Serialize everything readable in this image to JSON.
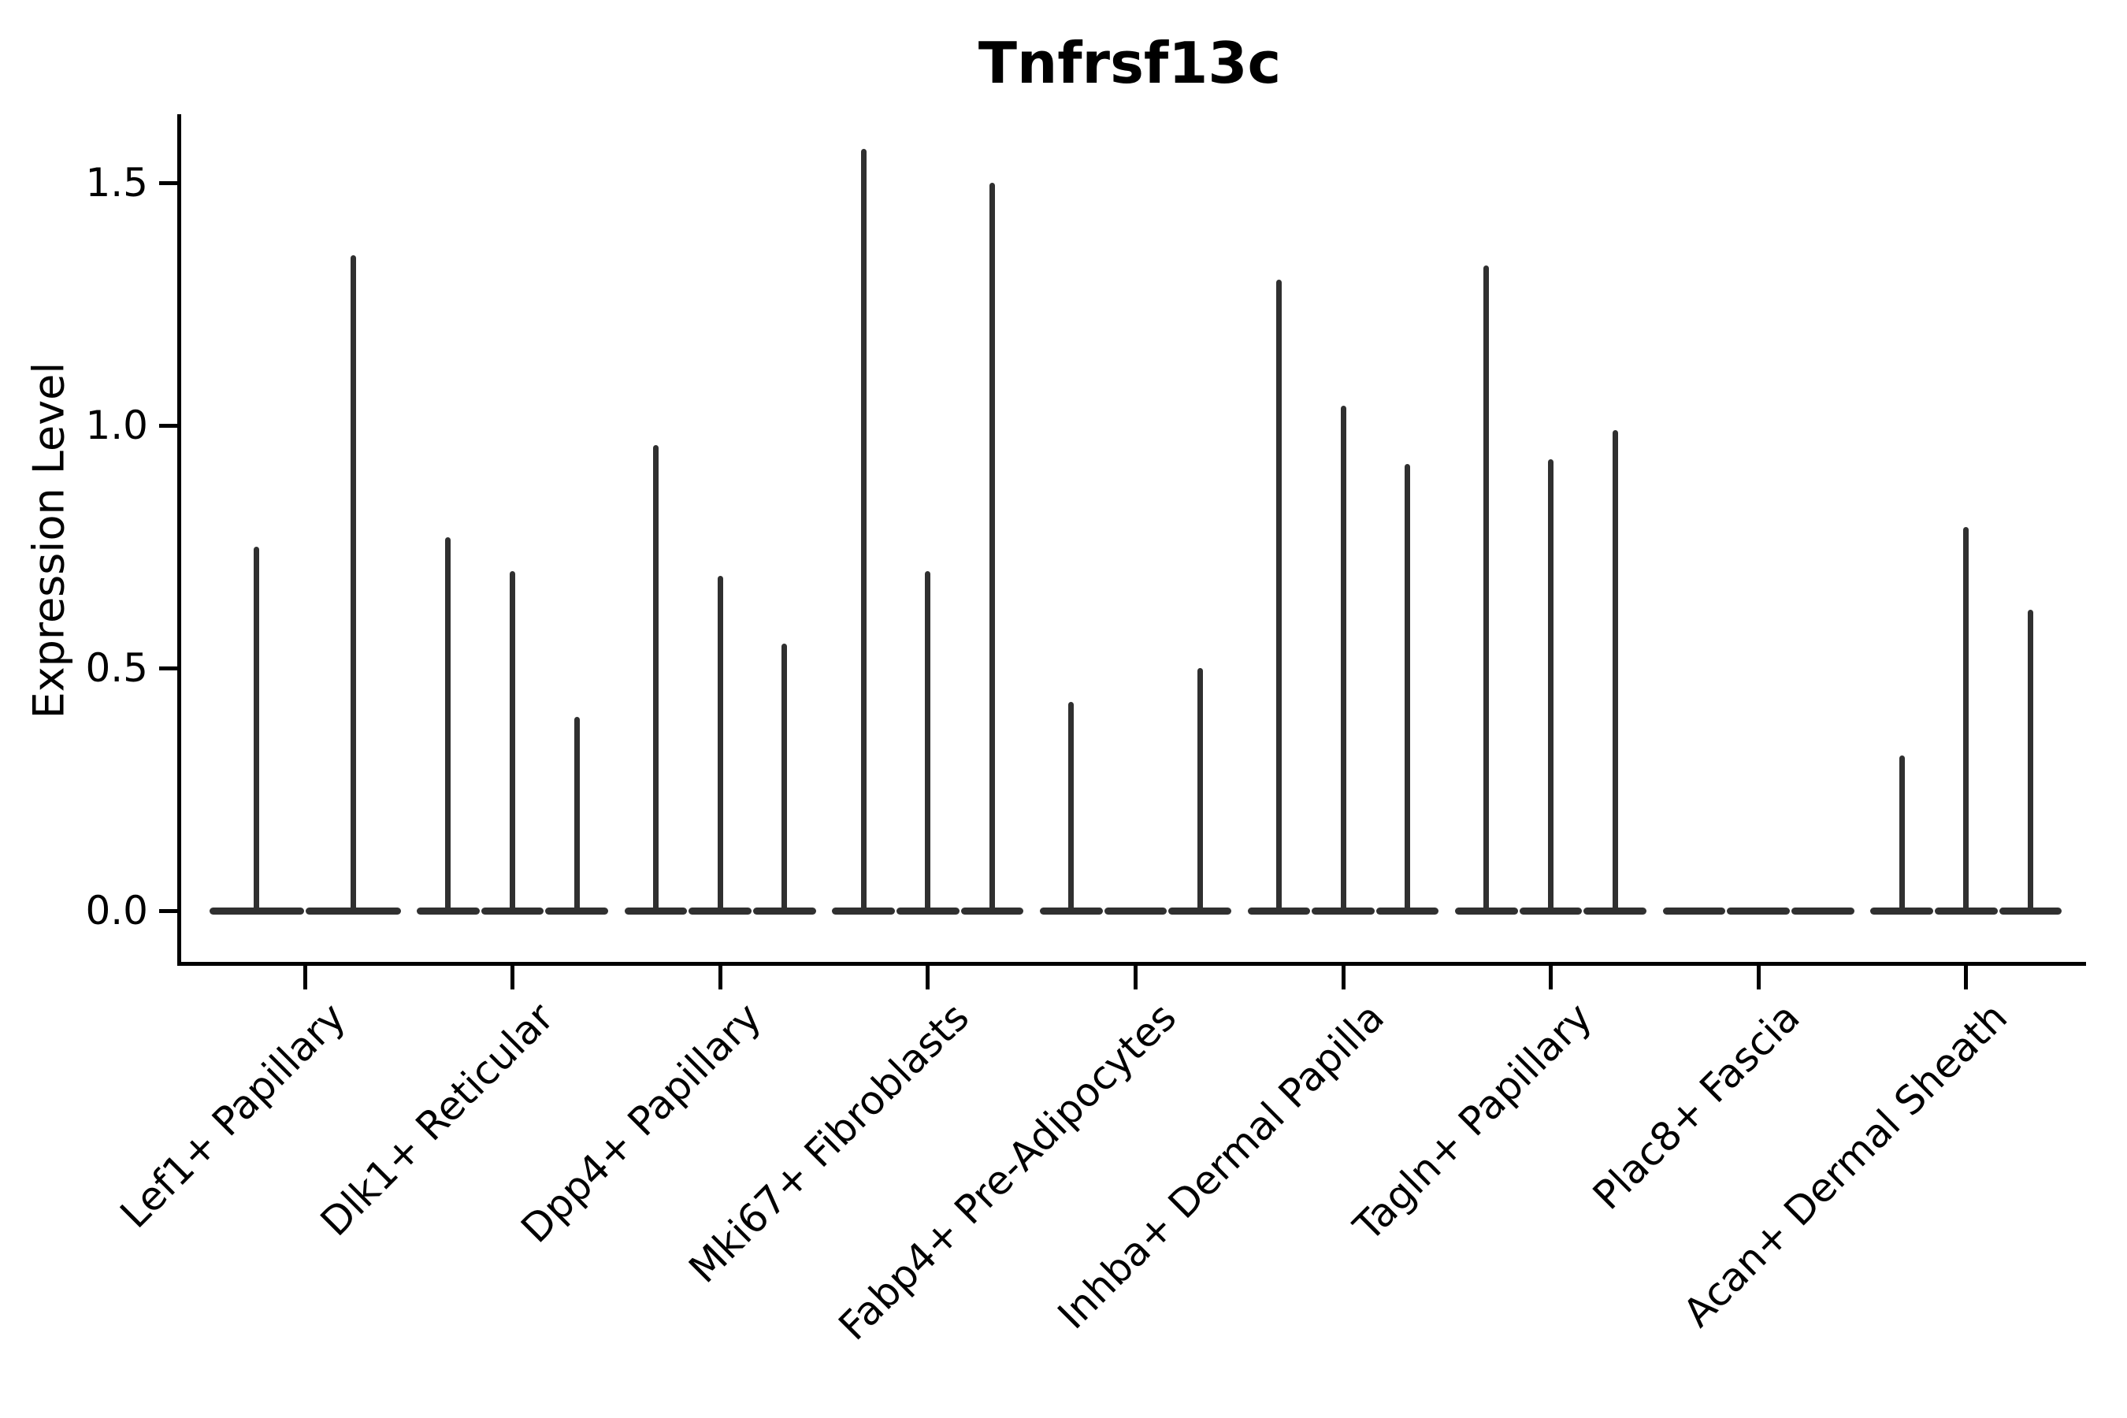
{
  "title": "Tnfrsf13c",
  "ylabel": "Expression Level",
  "chart_data": {
    "type": "violin",
    "title": "Tnfrsf13c",
    "xlabel": "",
    "ylabel": "Expression Level",
    "ylim": [
      -0.05,
      1.65
    ],
    "yticks": [
      0.0,
      0.5,
      1.0,
      1.5
    ],
    "ytick_labels": [
      "0.0",
      "0.5",
      "1.0",
      "1.5"
    ],
    "grid": false,
    "legend": "none",
    "line_color": "#303030",
    "description": "Each category shows 2-3 collapsed violins: a wide flat base at expression 0 and a thin spike reaching the max expression value.",
    "categories": [
      "Lef1+ Papillary",
      "Dlk1+ Reticular",
      "Dpp4+ Papillary",
      "Mki67+ Fibroblasts",
      "Fabp4+ Pre-Adipocytes",
      "Inhba+ Dermal Papilla",
      "Tagln+ Papillary",
      "Plac8+ Fascia",
      "Acan+ Dermal Sheath"
    ],
    "groups": [
      {
        "label": "Lef1+ Papillary",
        "violin_peaks": [
          0.75,
          1.35
        ]
      },
      {
        "label": "Dlk1+ Reticular",
        "violin_peaks": [
          0.77,
          0.7,
          0.4
        ]
      },
      {
        "label": "Dpp4+ Papillary",
        "violin_peaks": [
          0.96,
          0.69,
          0.55
        ]
      },
      {
        "label": "Mki67+ Fibroblasts",
        "violin_peaks": [
          1.57,
          0.7,
          1.5
        ]
      },
      {
        "label": "Fabp4+ Pre-Adipocytes",
        "violin_peaks": [
          0.43,
          0.0,
          0.5
        ]
      },
      {
        "label": "Inhba+ Dermal Papilla",
        "violin_peaks": [
          1.3,
          1.04,
          0.92
        ]
      },
      {
        "label": "Tagln+ Papillary",
        "violin_peaks": [
          1.33,
          0.93,
          0.99
        ]
      },
      {
        "label": "Plac8+ Fascia",
        "violin_peaks": [
          0.0,
          0.0,
          0.0
        ]
      },
      {
        "label": "Acan+ Dermal Sheath",
        "violin_peaks": [
          0.32,
          0.79,
          0.62
        ]
      }
    ]
  }
}
